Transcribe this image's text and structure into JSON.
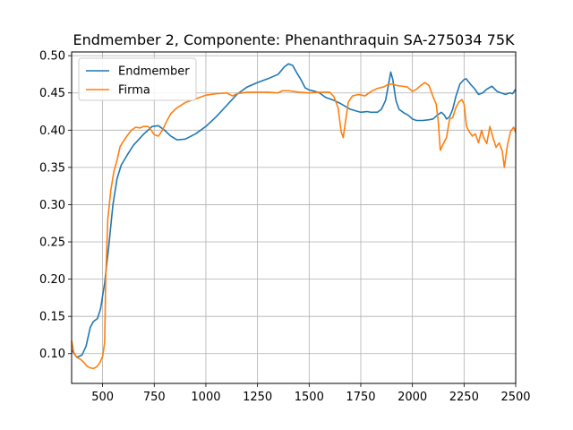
{
  "chart_data": {
    "type": "line",
    "title": "Endmember 2, Componente: Phenanthraquin SA-275034 75K",
    "xlabel": "",
    "ylabel": "",
    "xlim": [
      350,
      2500
    ],
    "ylim": [
      0.06,
      0.505
    ],
    "grid": true,
    "legend_position": "top-left",
    "x_ticks": [
      500,
      750,
      1000,
      1250,
      1500,
      1750,
      2000,
      2250,
      2500
    ],
    "y_ticks": [
      0.1,
      0.15,
      0.2,
      0.25,
      0.3,
      0.35,
      0.4,
      0.45,
      0.5
    ],
    "x_tick_labels": [
      "500",
      "750",
      "1000",
      "1250",
      "1500",
      "1750",
      "2000",
      "2250",
      "2500"
    ],
    "y_tick_labels": [
      "0.10",
      "0.15",
      "0.20",
      "0.25",
      "0.30",
      "0.35",
      "0.40",
      "0.45",
      "0.50"
    ],
    "series": [
      {
        "name": "Endmember",
        "color": "#1f77b4",
        "points": [
          [
            350,
            0.105
          ],
          [
            375,
            0.095
          ],
          [
            400,
            0.098
          ],
          [
            420,
            0.11
          ],
          [
            440,
            0.135
          ],
          [
            455,
            0.143
          ],
          [
            475,
            0.147
          ],
          [
            490,
            0.16
          ],
          [
            510,
            0.195
          ],
          [
            530,
            0.245
          ],
          [
            550,
            0.3
          ],
          [
            570,
            0.335
          ],
          [
            590,
            0.353
          ],
          [
            620,
            0.367
          ],
          [
            650,
            0.38
          ],
          [
            700,
            0.395
          ],
          [
            740,
            0.405
          ],
          [
            770,
            0.406
          ],
          [
            800,
            0.4
          ],
          [
            830,
            0.392
          ],
          [
            860,
            0.387
          ],
          [
            900,
            0.388
          ],
          [
            950,
            0.395
          ],
          [
            1000,
            0.405
          ],
          [
            1050,
            0.418
          ],
          [
            1100,
            0.433
          ],
          [
            1150,
            0.448
          ],
          [
            1200,
            0.458
          ],
          [
            1250,
            0.464
          ],
          [
            1300,
            0.469
          ],
          [
            1350,
            0.475
          ],
          [
            1380,
            0.485
          ],
          [
            1400,
            0.489
          ],
          [
            1420,
            0.487
          ],
          [
            1440,
            0.477
          ],
          [
            1460,
            0.468
          ],
          [
            1480,
            0.457
          ],
          [
            1500,
            0.454
          ],
          [
            1530,
            0.452
          ],
          [
            1550,
            0.45
          ],
          [
            1580,
            0.444
          ],
          [
            1620,
            0.44
          ],
          [
            1650,
            0.436
          ],
          [
            1700,
            0.428
          ],
          [
            1750,
            0.424
          ],
          [
            1780,
            0.425
          ],
          [
            1800,
            0.424
          ],
          [
            1830,
            0.424
          ],
          [
            1850,
            0.428
          ],
          [
            1870,
            0.44
          ],
          [
            1880,
            0.455
          ],
          [
            1895,
            0.478
          ],
          [
            1905,
            0.468
          ],
          [
            1920,
            0.44
          ],
          [
            1935,
            0.428
          ],
          [
            1960,
            0.423
          ],
          [
            1980,
            0.42
          ],
          [
            2000,
            0.415
          ],
          [
            2020,
            0.413
          ],
          [
            2050,
            0.413
          ],
          [
            2080,
            0.414
          ],
          [
            2100,
            0.415
          ],
          [
            2120,
            0.42
          ],
          [
            2140,
            0.424
          ],
          [
            2155,
            0.42
          ],
          [
            2165,
            0.415
          ],
          [
            2180,
            0.418
          ],
          [
            2195,
            0.428
          ],
          [
            2210,
            0.445
          ],
          [
            2230,
            0.462
          ],
          [
            2250,
            0.468
          ],
          [
            2260,
            0.469
          ],
          [
            2280,
            0.462
          ],
          [
            2300,
            0.456
          ],
          [
            2320,
            0.448
          ],
          [
            2340,
            0.45
          ],
          [
            2360,
            0.455
          ],
          [
            2385,
            0.459
          ],
          [
            2410,
            0.452
          ],
          [
            2430,
            0.45
          ],
          [
            2450,
            0.448
          ],
          [
            2470,
            0.45
          ],
          [
            2485,
            0.449
          ],
          [
            2500,
            0.455
          ]
        ]
      },
      {
        "name": "Firma",
        "color": "#ff7f0e",
        "points": [
          [
            350,
            0.117
          ],
          [
            360,
            0.102
          ],
          [
            375,
            0.095
          ],
          [
            395,
            0.092
          ],
          [
            410,
            0.088
          ],
          [
            425,
            0.083
          ],
          [
            440,
            0.081
          ],
          [
            455,
            0.08
          ],
          [
            470,
            0.082
          ],
          [
            485,
            0.087
          ],
          [
            500,
            0.096
          ],
          [
            510,
            0.115
          ],
          [
            515,
            0.2
          ],
          [
            525,
            0.28
          ],
          [
            540,
            0.32
          ],
          [
            555,
            0.345
          ],
          [
            570,
            0.36
          ],
          [
            585,
            0.378
          ],
          [
            600,
            0.385
          ],
          [
            620,
            0.393
          ],
          [
            640,
            0.4
          ],
          [
            660,
            0.404
          ],
          [
            680,
            0.403
          ],
          [
            700,
            0.405
          ],
          [
            720,
            0.405
          ],
          [
            735,
            0.4
          ],
          [
            750,
            0.394
          ],
          [
            770,
            0.392
          ],
          [
            790,
            0.4
          ],
          [
            810,
            0.412
          ],
          [
            830,
            0.422
          ],
          [
            860,
            0.43
          ],
          [
            900,
            0.437
          ],
          [
            950,
            0.442
          ],
          [
            1000,
            0.447
          ],
          [
            1050,
            0.449
          ],
          [
            1100,
            0.45
          ],
          [
            1130,
            0.446
          ],
          [
            1150,
            0.449
          ],
          [
            1200,
            0.451
          ],
          [
            1250,
            0.451
          ],
          [
            1300,
            0.451
          ],
          [
            1350,
            0.45
          ],
          [
            1370,
            0.453
          ],
          [
            1400,
            0.453
          ],
          [
            1450,
            0.451
          ],
          [
            1500,
            0.45
          ],
          [
            1550,
            0.451
          ],
          [
            1600,
            0.451
          ],
          [
            1620,
            0.445
          ],
          [
            1640,
            0.43
          ],
          [
            1655,
            0.398
          ],
          [
            1665,
            0.39
          ],
          [
            1675,
            0.41
          ],
          [
            1690,
            0.438
          ],
          [
            1710,
            0.446
          ],
          [
            1740,
            0.448
          ],
          [
            1770,
            0.446
          ],
          [
            1800,
            0.452
          ],
          [
            1830,
            0.456
          ],
          [
            1860,
            0.458
          ],
          [
            1880,
            0.461
          ],
          [
            1900,
            0.462
          ],
          [
            1925,
            0.46
          ],
          [
            1950,
            0.459
          ],
          [
            1975,
            0.458
          ],
          [
            2000,
            0.452
          ],
          [
            2020,
            0.455
          ],
          [
            2040,
            0.46
          ],
          [
            2060,
            0.464
          ],
          [
            2080,
            0.46
          ],
          [
            2100,
            0.445
          ],
          [
            2115,
            0.435
          ],
          [
            2125,
            0.412
          ],
          [
            2135,
            0.373
          ],
          [
            2150,
            0.382
          ],
          [
            2165,
            0.39
          ],
          [
            2180,
            0.415
          ],
          [
            2195,
            0.417
          ],
          [
            2210,
            0.43
          ],
          [
            2225,
            0.438
          ],
          [
            2240,
            0.441
          ],
          [
            2250,
            0.435
          ],
          [
            2262,
            0.405
          ],
          [
            2275,
            0.398
          ],
          [
            2290,
            0.392
          ],
          [
            2305,
            0.395
          ],
          [
            2320,
            0.383
          ],
          [
            2335,
            0.4
          ],
          [
            2345,
            0.39
          ],
          [
            2360,
            0.382
          ],
          [
            2375,
            0.405
          ],
          [
            2390,
            0.39
          ],
          [
            2405,
            0.377
          ],
          [
            2420,
            0.383
          ],
          [
            2435,
            0.372
          ],
          [
            2445,
            0.35
          ],
          [
            2460,
            0.38
          ],
          [
            2475,
            0.398
          ],
          [
            2490,
            0.404
          ],
          [
            2500,
            0.397
          ]
        ]
      }
    ]
  }
}
